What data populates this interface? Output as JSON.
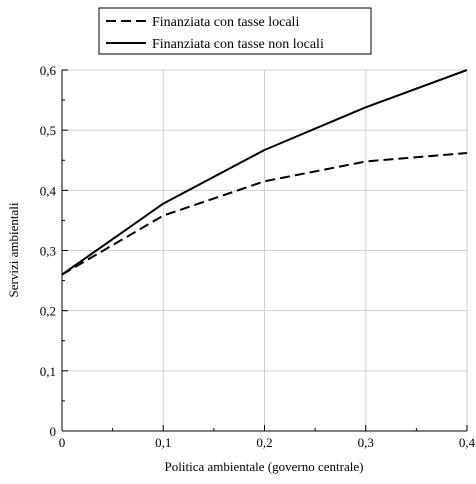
{
  "chart_data": {
    "type": "line",
    "title": "",
    "xlabel": "Politica ambientale (governo centrale)",
    "ylabel": "Servizi ambientali",
    "xlim": [
      0,
      0.4
    ],
    "ylim": [
      0,
      0.6
    ],
    "x_ticks": [
      0,
      0.1,
      0.2,
      0.3,
      0.4
    ],
    "x_tick_labels": [
      "0",
      "0,1",
      "0,2",
      "0,3",
      "0,4"
    ],
    "y_ticks": [
      0,
      0.1,
      0.2,
      0.3,
      0.4,
      0.5,
      0.6
    ],
    "y_tick_labels": [
      "0",
      "0,1",
      "0,2",
      "0,3",
      "0,4",
      "0,5",
      "0,6"
    ],
    "grid": true,
    "legend_position": "top",
    "x": [
      0,
      0.1,
      0.2,
      0.3,
      0.4
    ],
    "series": [
      {
        "name": "Finanziata con tasse locali",
        "values": [
          0.26,
          0.358,
          0.415,
          0.448,
          0.462
        ],
        "style": "dashed",
        "color": "#000000"
      },
      {
        "name": "Finanziata con tasse non locali",
        "values": [
          0.26,
          0.378,
          0.467,
          0.538,
          0.6
        ],
        "style": "solid",
        "color": "#000000"
      }
    ]
  }
}
